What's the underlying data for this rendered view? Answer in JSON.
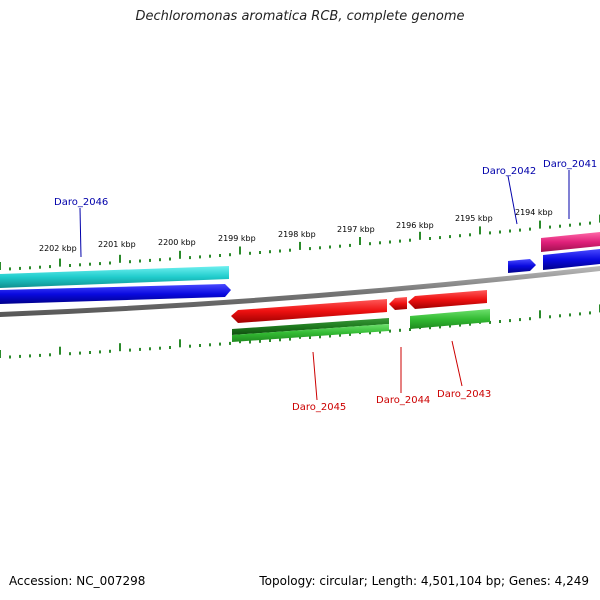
{
  "title": "Dechloromonas aromatica RCB, complete genome",
  "footer": {
    "accession": "Accession: NC_007298",
    "summary": "Topology: circular; Length: 4,501,104 bp; Genes: 4,249"
  },
  "scale_labels": [
    "2202 kbp",
    "2201 kbp",
    "2200 kbp",
    "2199 kbp",
    "2198 kbp",
    "2197 kbp",
    "2196 kbp",
    "2195 kbp",
    "2194 kbp"
  ],
  "genes": [
    {
      "label": "Daro_2046",
      "color": "#0000aa"
    },
    {
      "label": "Daro_2045",
      "color": "#cc0000"
    },
    {
      "label": "Daro_2044",
      "color": "#cc0000"
    },
    {
      "label": "Daro_2043",
      "color": "#cc0000"
    },
    {
      "label": "Daro_2042",
      "color": "#0000aa"
    },
    {
      "label": "Daro_2041",
      "color": "#0000aa"
    }
  ],
  "colors": {
    "cyan_feature": "#20cccc",
    "blue_feature": "#0a0ae0",
    "red_feature": "#ee1111",
    "green_feature": "#33bb33",
    "dark_green_feature": "#1e7a1e",
    "magenta_feature": "#e0207a",
    "backbone": "#888888",
    "tick": "#2a8a2a"
  }
}
